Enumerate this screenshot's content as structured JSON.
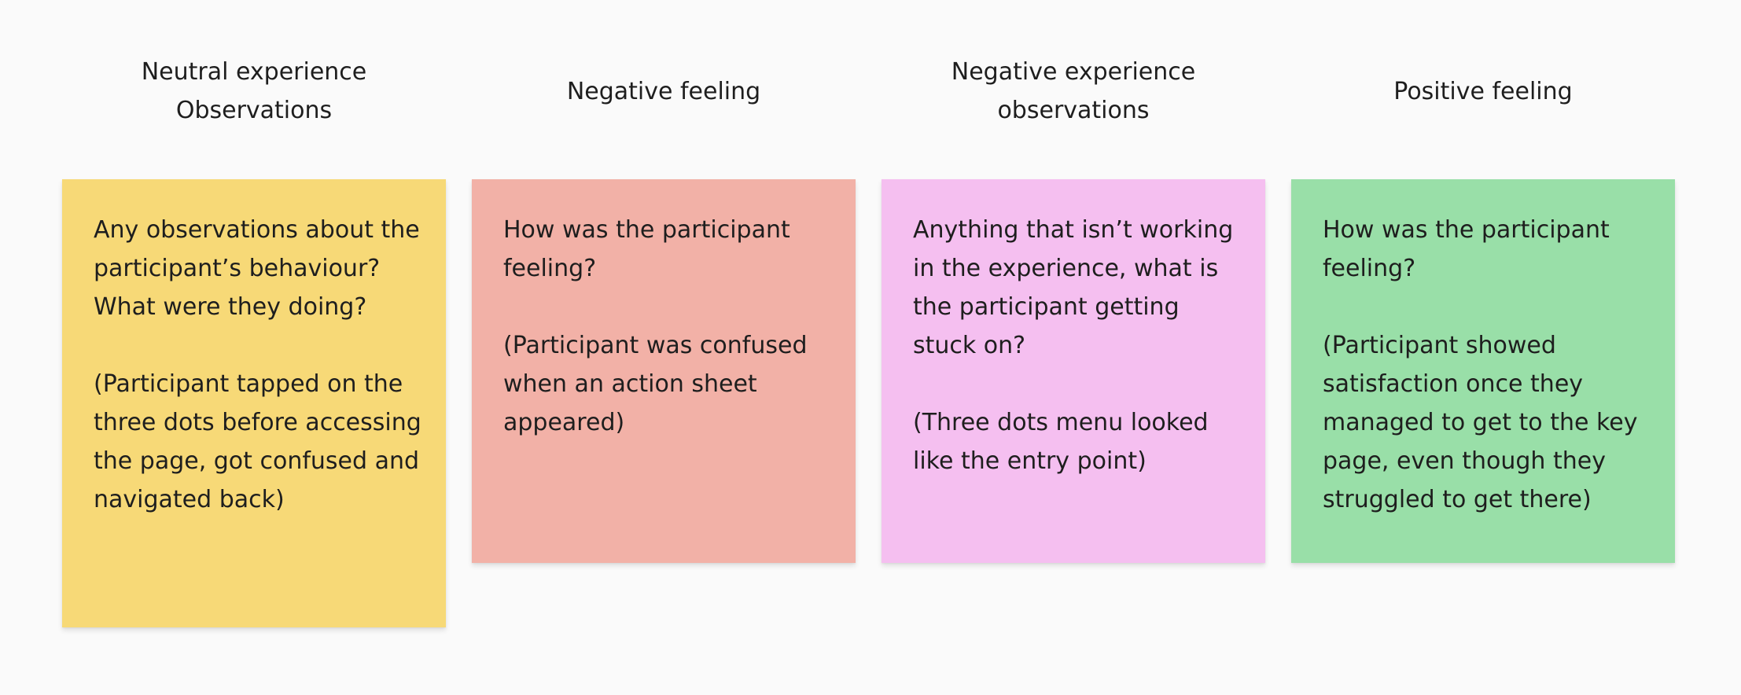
{
  "columns": [
    {
      "header": "Neutral experience\nObservations",
      "note": "Any observations about the participant’s behaviour? What were they doing?\n\n(Participant tapped on the three dots before accessing the page, got confused and navigated back)",
      "color": "#f7d977"
    },
    {
      "header": "Negative feeling",
      "note": "How was the participant feeling?\n\n(Participant was confused when an action sheet appeared)",
      "color": "#f2b1a7"
    },
    {
      "header": "Negative experience\nobservations",
      "note": "Anything that isn’t working in the experience, what is the participant getting stuck on?\n\n(Three dots menu looked like the entry point)",
      "color": "#f5bff0"
    },
    {
      "header": "Positive feeling",
      "note": "How was the participant feeling?\n\n(Participant showed satisfaction once they managed to get to the key page, even though they struggled to get there)",
      "color": "#99dfa8"
    }
  ]
}
